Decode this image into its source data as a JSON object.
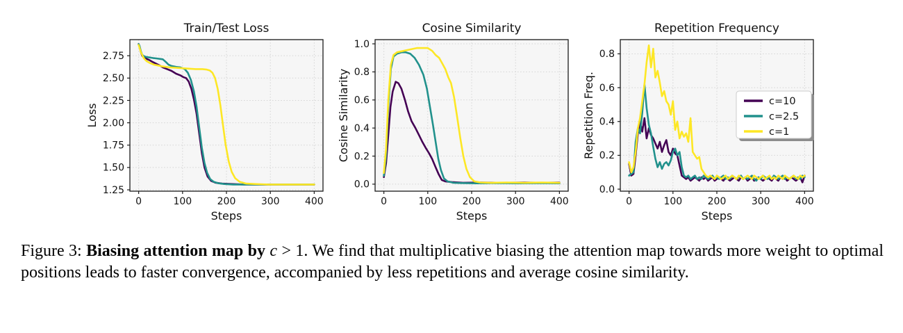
{
  "caption": {
    "prefix": "Figure 3: ",
    "bold": "Biasing attention map by ",
    "math_c": "c",
    "math_rest": " > 1",
    "rest": ". We find that multiplicative biasing the attention map towards more weight to optimal positions leads to faster convergence, accompanied by less repetitions and average cosine similarity."
  },
  "colors": {
    "c10": "#440154",
    "c25": "#21918c",
    "c1": "#fde725",
    "axes_bg": "#f6f6f6",
    "grid": "#d4d4d4",
    "spine": "#1a1a1a",
    "text": "#111111",
    "legend_border": "#cccccc",
    "legend_shadow": "#8c8c8c"
  },
  "chart_data": [
    {
      "type": "line",
      "title": "Train/Test Loss",
      "xlabel": "Steps",
      "ylabel": "Loss",
      "xlim": [
        -20,
        420
      ],
      "ylim": [
        1.235,
        2.93
      ],
      "grid": true,
      "legend": null,
      "xticks": {
        "values": [
          0,
          100,
          200,
          300,
          400
        ],
        "labels": [
          "0",
          "100",
          "200",
          "300",
          "400"
        ]
      },
      "yticks": {
        "values": [
          1.25,
          1.5,
          1.75,
          2.0,
          2.25,
          2.5,
          2.75
        ],
        "labels": [
          "1.25",
          "1.50",
          "1.75",
          "2.00",
          "2.25",
          "2.50",
          "2.75"
        ]
      },
      "series": [
        {
          "name": "c=10",
          "color": "#440154",
          "x": [
            0,
            2,
            5,
            8,
            12,
            18,
            25,
            32,
            40,
            48,
            55,
            65,
            75,
            85,
            95,
            102,
            108,
            114,
            120,
            126,
            132,
            138,
            144,
            150,
            157,
            165,
            175,
            190,
            210,
            240,
            280,
            330,
            400
          ],
          "y": [
            2.88,
            2.85,
            2.79,
            2.75,
            2.73,
            2.715,
            2.7,
            2.68,
            2.66,
            2.64,
            2.62,
            2.6,
            2.58,
            2.55,
            2.53,
            2.51,
            2.5,
            2.46,
            2.38,
            2.26,
            2.1,
            1.88,
            1.66,
            1.5,
            1.4,
            1.35,
            1.33,
            1.32,
            1.315,
            1.31,
            1.31,
            1.31,
            1.31
          ]
        },
        {
          "name": "c=2.5",
          "color": "#21918c",
          "x": [
            0,
            2,
            5,
            8,
            12,
            18,
            25,
            32,
            40,
            48,
            55,
            62,
            68,
            75,
            85,
            95,
            105,
            112,
            119,
            126,
            132,
            138,
            144,
            150,
            156,
            163,
            171,
            180,
            195,
            215,
            250,
            300,
            360,
            400
          ],
          "y": [
            2.88,
            2.86,
            2.8,
            2.76,
            2.745,
            2.735,
            2.73,
            2.725,
            2.72,
            2.715,
            2.71,
            2.68,
            2.65,
            2.635,
            2.625,
            2.62,
            2.6,
            2.56,
            2.48,
            2.35,
            2.18,
            1.95,
            1.72,
            1.55,
            1.44,
            1.37,
            1.34,
            1.325,
            1.315,
            1.31,
            1.31,
            1.31,
            1.31,
            1.31
          ]
        },
        {
          "name": "c=1",
          "color": "#fde725",
          "x": [
            0,
            2,
            5,
            8,
            12,
            18,
            25,
            35,
            45,
            55,
            70,
            85,
            100,
            115,
            130,
            145,
            155,
            162,
            168,
            174,
            180,
            186,
            192,
            198,
            205,
            212,
            220,
            230,
            245,
            265,
            295,
            335,
            400
          ],
          "y": [
            2.87,
            2.84,
            2.79,
            2.76,
            2.72,
            2.69,
            2.67,
            2.65,
            2.64,
            2.63,
            2.62,
            2.615,
            2.61,
            2.605,
            2.6,
            2.6,
            2.595,
            2.585,
            2.56,
            2.5,
            2.38,
            2.2,
            1.98,
            1.76,
            1.57,
            1.45,
            1.38,
            1.34,
            1.32,
            1.315,
            1.31,
            1.31,
            1.31
          ]
        }
      ]
    },
    {
      "type": "line",
      "title": "Cosine Similarity",
      "xlabel": "Steps",
      "ylabel": "Cosine Similarity",
      "xlim": [
        -20,
        420
      ],
      "ylim": [
        -0.05,
        1.03
      ],
      "grid": true,
      "legend": null,
      "xticks": {
        "values": [
          0,
          100,
          200,
          300,
          400
        ],
        "labels": [
          "0",
          "100",
          "200",
          "300",
          "400"
        ]
      },
      "yticks": {
        "values": [
          0.0,
          0.2,
          0.4,
          0.6,
          0.8,
          1.0
        ],
        "labels": [
          "0.0",
          "0.2",
          "0.4",
          "0.6",
          "0.8",
          "1.0"
        ]
      },
      "series": [
        {
          "name": "c=10",
          "color": "#440154",
          "x": [
            0,
            5,
            10,
            15,
            20,
            27,
            33,
            40,
            48,
            55,
            63,
            72,
            80,
            88,
            95,
            103,
            110,
            118,
            125,
            132,
            140,
            155,
            180,
            220,
            270,
            320,
            360,
            400
          ],
          "y": [
            0.05,
            0.15,
            0.35,
            0.55,
            0.66,
            0.73,
            0.72,
            0.68,
            0.6,
            0.52,
            0.45,
            0.4,
            0.35,
            0.3,
            0.26,
            0.22,
            0.18,
            0.12,
            0.07,
            0.03,
            0.02,
            0.015,
            0.01,
            0.012,
            0.01,
            0.012,
            0.01,
            0.012
          ]
        },
        {
          "name": "c=2.5",
          "color": "#21918c",
          "x": [
            0,
            5,
            10,
            16,
            22,
            30,
            40,
            50,
            60,
            70,
            80,
            90,
            98,
            105,
            112,
            118,
            124,
            130,
            137,
            145,
            158,
            175,
            210,
            260,
            310,
            360,
            400
          ],
          "y": [
            0.06,
            0.2,
            0.55,
            0.82,
            0.91,
            0.93,
            0.94,
            0.94,
            0.93,
            0.9,
            0.85,
            0.78,
            0.68,
            0.55,
            0.42,
            0.3,
            0.18,
            0.1,
            0.04,
            0.02,
            0.01,
            0.008,
            0.006,
            0.008,
            0.006,
            0.008,
            0.006
          ]
        },
        {
          "name": "c=1",
          "color": "#fde725",
          "x": [
            0,
            5,
            10,
            16,
            22,
            30,
            45,
            60,
            75,
            90,
            100,
            110,
            118,
            126,
            133,
            140,
            147,
            153,
            160,
            167,
            174,
            181,
            188,
            196,
            206,
            220,
            245,
            280,
            320,
            360,
            400
          ],
          "y": [
            0.08,
            0.25,
            0.6,
            0.85,
            0.92,
            0.94,
            0.95,
            0.96,
            0.97,
            0.97,
            0.97,
            0.95,
            0.92,
            0.9,
            0.86,
            0.82,
            0.76,
            0.72,
            0.62,
            0.48,
            0.33,
            0.2,
            0.11,
            0.05,
            0.02,
            0.012,
            0.01,
            0.012,
            0.01,
            0.012,
            0.01
          ]
        }
      ]
    },
    {
      "type": "line",
      "title": "Repetition Frequency",
      "xlabel": "Steps",
      "ylabel": "Repetition Freq.",
      "xlim": [
        -20,
        420
      ],
      "ylim": [
        -0.012,
        0.884
      ],
      "grid": true,
      "legend": {
        "position": "center right",
        "entries": [
          {
            "label": "c=10",
            "color": "#440154"
          },
          {
            "label": "c=2.5",
            "color": "#21918c"
          },
          {
            "label": "c=1",
            "color": "#fde725"
          }
        ]
      },
      "xticks": {
        "values": [
          0,
          100,
          200,
          300,
          400
        ],
        "labels": [
          "0",
          "100",
          "200",
          "300",
          "400"
        ]
      },
      "yticks": {
        "values": [
          0.0,
          0.2,
          0.4,
          0.6,
          0.8
        ],
        "labels": [
          "0.0",
          "0.2",
          "0.4",
          "0.6",
          "0.8"
        ]
      },
      "series": [
        {
          "name": "c=10",
          "color": "#440154",
          "x_range": [
            0,
            400,
            5
          ],
          "y": [
            0.15,
            0.08,
            0.09,
            0.2,
            0.33,
            0.4,
            0.34,
            0.42,
            0.3,
            0.36,
            0.32,
            0.3,
            0.27,
            0.24,
            0.28,
            0.22,
            0.26,
            0.29,
            0.22,
            0.2,
            0.24,
            0.21,
            0.2,
            0.14,
            0.08,
            0.07,
            0.06,
            0.07,
            0.05,
            0.06,
            0.07,
            0.06,
            0.05,
            0.07,
            0.06,
            0.07,
            0.05,
            0.06,
            0.07,
            0.05,
            0.06,
            0.07,
            0.06,
            0.05,
            0.07,
            0.06,
            0.05,
            0.06,
            0.07,
            0.06,
            0.05,
            0.07,
            0.06,
            0.07,
            0.05,
            0.06,
            0.07,
            0.05,
            0.06,
            0.07,
            0.06,
            0.05,
            0.06,
            0.07,
            0.06,
            0.05,
            0.07,
            0.06,
            0.05,
            0.07,
            0.06,
            0.07,
            0.05,
            0.06,
            0.07,
            0.06,
            0.05,
            0.06,
            0.07,
            0.04,
            0.08
          ]
        },
        {
          "name": "c=2.5",
          "color": "#21918c",
          "x_range": [
            0,
            400,
            5
          ],
          "y": [
            0.08,
            0.09,
            0.1,
            0.28,
            0.36,
            0.33,
            0.45,
            0.62,
            0.48,
            0.38,
            0.33,
            0.25,
            0.18,
            0.13,
            0.16,
            0.12,
            0.15,
            0.16,
            0.14,
            0.17,
            0.22,
            0.24,
            0.2,
            0.22,
            0.13,
            0.08,
            0.07,
            0.08,
            0.06,
            0.07,
            0.08,
            0.06,
            0.07,
            0.06,
            0.08,
            0.07,
            0.06,
            0.07,
            0.08,
            0.06,
            0.07,
            0.06,
            0.07,
            0.08,
            0.06,
            0.07,
            0.06,
            0.08,
            0.07,
            0.06,
            0.07,
            0.08,
            0.06,
            0.07,
            0.06,
            0.07,
            0.08,
            0.06,
            0.05,
            0.07,
            0.06,
            0.08,
            0.07,
            0.06,
            0.07,
            0.06,
            0.08,
            0.07,
            0.06,
            0.07,
            0.08,
            0.06,
            0.07,
            0.06,
            0.07,
            0.08,
            0.06,
            0.07,
            0.06,
            0.08,
            0.07
          ]
        },
        {
          "name": "c=1",
          "color": "#fde725",
          "x_range": [
            0,
            400,
            5
          ],
          "y": [
            0.16,
            0.1,
            0.13,
            0.22,
            0.36,
            0.42,
            0.52,
            0.62,
            0.75,
            0.85,
            0.72,
            0.83,
            0.66,
            0.7,
            0.63,
            0.55,
            0.58,
            0.52,
            0.5,
            0.44,
            0.52,
            0.35,
            0.4,
            0.3,
            0.34,
            0.31,
            0.33,
            0.28,
            0.42,
            0.22,
            0.2,
            0.18,
            0.19,
            0.12,
            0.1,
            0.08,
            0.07,
            0.08,
            0.07,
            0.06,
            0.08,
            0.07,
            0.06,
            0.07,
            0.08,
            0.06,
            0.07,
            0.08,
            0.07,
            0.06,
            0.08,
            0.07,
            0.06,
            0.07,
            0.08,
            0.07,
            0.06,
            0.08,
            0.07,
            0.06,
            0.07,
            0.08,
            0.06,
            0.07,
            0.08,
            0.06,
            0.07,
            0.06,
            0.08,
            0.07,
            0.06,
            0.08,
            0.07,
            0.06,
            0.07,
            0.08,
            0.07,
            0.06,
            0.08,
            0.07,
            0.08
          ]
        }
      ]
    }
  ]
}
